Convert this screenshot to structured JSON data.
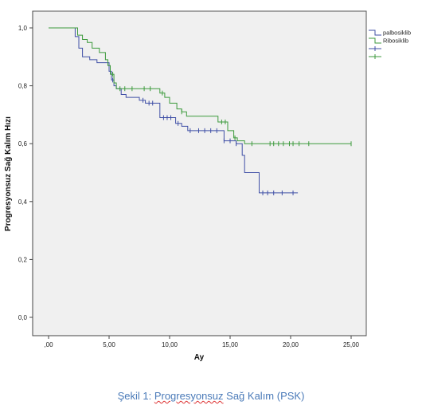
{
  "chart_data": {
    "type": "line",
    "step": true,
    "xlabel": "Ay",
    "ylabel": "Progresyonsuz Sağ Kalım Hızı",
    "xlim": [
      0,
      25
    ],
    "ylim": [
      0,
      1.0
    ],
    "x_ticks": [
      ",00",
      "5,00",
      "10,00",
      "15,00",
      "20,00",
      "25,00"
    ],
    "y_ticks": [
      "0,0",
      "0,2",
      "0,4",
      "0,6",
      "0,8",
      "1,0"
    ],
    "grid": false,
    "legend_position": "top-right",
    "series": [
      {
        "name": "palbosiklib",
        "color": "#3f4fa6",
        "points": [
          [
            0,
            1.0
          ],
          [
            2.2,
            0.97
          ],
          [
            2.5,
            0.93
          ],
          [
            2.8,
            0.9
          ],
          [
            3.4,
            0.89
          ],
          [
            4.0,
            0.88
          ],
          [
            4.8,
            0.88
          ],
          [
            5.0,
            0.85
          ],
          [
            5.2,
            0.82
          ],
          [
            5.4,
            0.8
          ],
          [
            5.6,
            0.79
          ],
          [
            6.0,
            0.77
          ],
          [
            6.4,
            0.76
          ],
          [
            7.5,
            0.75
          ],
          [
            8.0,
            0.74
          ],
          [
            8.8,
            0.74
          ],
          [
            9.2,
            0.69
          ],
          [
            10.5,
            0.67
          ],
          [
            11.0,
            0.66
          ],
          [
            11.5,
            0.645
          ],
          [
            12.0,
            0.645
          ],
          [
            14.5,
            0.61
          ],
          [
            15.5,
            0.6
          ],
          [
            16.0,
            0.56
          ],
          [
            16.2,
            0.5
          ],
          [
            17.4,
            0.43
          ],
          [
            20.6,
            0.43
          ]
        ],
        "censors": [
          5.1,
          5.3,
          7.8,
          8.3,
          8.6,
          9.5,
          9.8,
          10.1,
          10.7,
          11.7,
          12.4,
          12.9,
          13.4,
          13.9,
          14.5,
          15.0,
          15.5,
          17.7,
          18.1,
          18.6,
          19.3,
          20.2
        ]
      },
      {
        "name": "Ribosiklib",
        "color": "#3c9a3c",
        "points": [
          [
            0,
            1.0
          ],
          [
            2.4,
            0.975
          ],
          [
            2.8,
            0.96
          ],
          [
            3.2,
            0.95
          ],
          [
            3.6,
            0.93
          ],
          [
            4.2,
            0.915
          ],
          [
            4.7,
            0.89
          ],
          [
            4.9,
            0.87
          ],
          [
            5.1,
            0.84
          ],
          [
            5.4,
            0.81
          ],
          [
            5.6,
            0.79
          ],
          [
            8.0,
            0.79
          ],
          [
            9.2,
            0.775
          ],
          [
            9.6,
            0.76
          ],
          [
            10.0,
            0.74
          ],
          [
            10.6,
            0.72
          ],
          [
            11.0,
            0.71
          ],
          [
            11.4,
            0.695
          ],
          [
            14.0,
            0.675
          ],
          [
            14.8,
            0.645
          ],
          [
            15.3,
            0.62
          ],
          [
            15.6,
            0.61
          ],
          [
            16.2,
            0.6
          ],
          [
            25.0,
            0.6
          ]
        ],
        "censors": [
          5.3,
          5.9,
          6.3,
          6.9,
          7.9,
          8.4,
          9.4,
          11.0,
          14.3,
          14.6,
          15.4,
          16.8,
          18.3,
          18.6,
          19.0,
          19.4,
          19.9,
          20.2,
          20.7,
          21.5,
          25.0
        ]
      }
    ]
  },
  "legend": {
    "items": [
      {
        "label": "palbosiklib",
        "color": "#3f4fa6",
        "symbol": "step-line"
      },
      {
        "label": "Ribosiklib",
        "color": "#3c9a3c",
        "symbol": "step-line"
      },
      {
        "label": "",
        "color": "#3f4fa6",
        "symbol": "censor-mark"
      },
      {
        "label": "",
        "color": "#3c9a3c",
        "symbol": "censor-mark"
      }
    ]
  },
  "caption": {
    "prefix": "Şekil 1: ",
    "underlined": "Progresyonsuz",
    "suffix": " Sağ Kalım (PSK)"
  }
}
